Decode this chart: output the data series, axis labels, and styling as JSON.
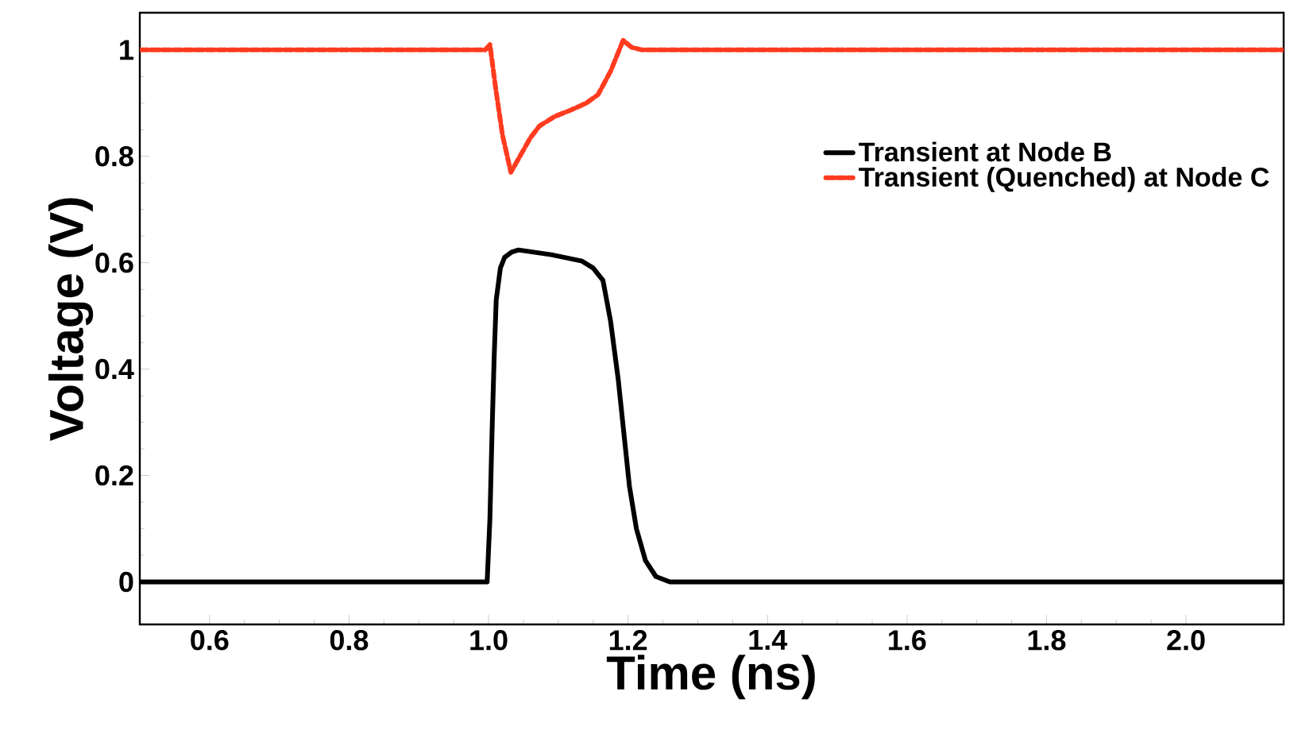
{
  "chart_data": {
    "type": "line",
    "xlabel": "Time (ns)",
    "ylabel": "Voltage (V)",
    "xlim": [
      0.5,
      2.14
    ],
    "ylim": [
      -0.08,
      1.07
    ],
    "xticks": [
      {
        "value": 0.6,
        "label": "0.6"
      },
      {
        "value": 0.8,
        "label": "0.8"
      },
      {
        "value": 1.0,
        "label": "1.0"
      },
      {
        "value": 1.2,
        "label": "1.2"
      },
      {
        "value": 1.4,
        "label": "1.4"
      },
      {
        "value": 1.6,
        "label": "1.6"
      },
      {
        "value": 1.8,
        "label": "1.8"
      },
      {
        "value": 2.0,
        "label": "2.0"
      }
    ],
    "yticks": [
      0,
      0.2,
      0.4,
      0.6,
      0.8,
      1
    ],
    "grid": false,
    "legend": "top right",
    "marker": "none",
    "series": [
      {
        "name": "Transient at Node B",
        "color": "#000000",
        "line_style": "solid",
        "x": [
          0.5,
          0.998,
          1.002,
          1.005,
          1.008,
          1.011,
          1.017,
          1.023,
          1.033,
          1.043,
          1.09,
          1.134,
          1.15,
          1.164,
          1.175,
          1.186,
          1.194,
          1.202,
          1.212,
          1.225,
          1.24,
          1.26,
          1.3,
          2.14
        ],
        "values": [
          0,
          0,
          0.12,
          0.28,
          0.42,
          0.53,
          0.59,
          0.61,
          0.62,
          0.624,
          0.615,
          0.603,
          0.59,
          0.567,
          0.49,
          0.38,
          0.28,
          0.18,
          0.1,
          0.04,
          0.01,
          0,
          0,
          0
        ]
      },
      {
        "name": "Transient (Quenched) at Node C",
        "color": "#ff3b1f",
        "line_style": "dashed",
        "x": [
          0.5,
          0.995,
          1.002,
          1.01,
          1.02,
          1.032,
          1.045,
          1.06,
          1.073,
          1.095,
          1.118,
          1.14,
          1.157,
          1.175,
          1.193,
          1.205,
          1.22,
          2.14
        ],
        "values": [
          1,
          1,
          1.01,
          0.93,
          0.84,
          0.77,
          0.8,
          0.835,
          0.857,
          0.875,
          0.887,
          0.9,
          0.916,
          0.96,
          1.018,
          1.005,
          1.0,
          1.0
        ]
      }
    ]
  }
}
